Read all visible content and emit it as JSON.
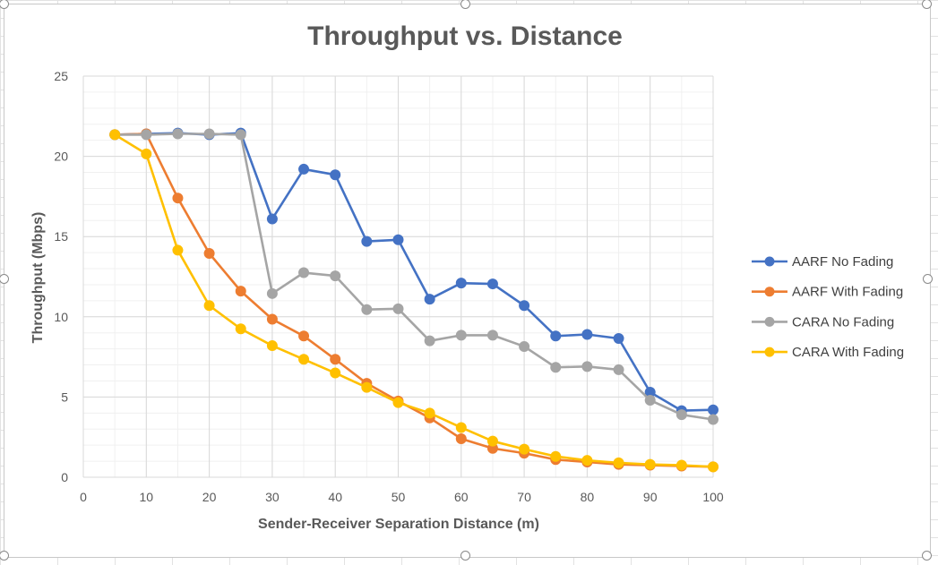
{
  "chart_data": {
    "type": "line",
    "title": "Throughput vs. Distance",
    "xlabel": "Sender-Receiver Separation Distance (m)",
    "ylabel": "Throughput  (Mbps)",
    "xlim": [
      0,
      100
    ],
    "ylim": [
      0,
      25
    ],
    "x_ticks": [
      0,
      10,
      20,
      30,
      40,
      50,
      60,
      70,
      80,
      90,
      100
    ],
    "y_ticks": [
      0,
      5,
      10,
      15,
      20,
      25
    ],
    "grid": true,
    "legend_position": "right",
    "x": [
      5,
      10,
      15,
      20,
      25,
      30,
      35,
      40,
      45,
      50,
      55,
      60,
      65,
      70,
      75,
      80,
      85,
      90,
      95,
      100
    ],
    "series": [
      {
        "name": "AARF No Fading",
        "color": "#4472C4",
        "values": [
          21.35,
          21.4,
          21.45,
          21.35,
          21.45,
          16.1,
          19.2,
          18.85,
          14.7,
          14.8,
          11.1,
          12.1,
          12.05,
          10.7,
          8.8,
          8.9,
          8.65,
          5.3,
          4.15,
          4.2
        ]
      },
      {
        "name": "AARF With Fading",
        "color": "#ED7D31",
        "values": [
          21.35,
          21.4,
          17.4,
          13.95,
          11.6,
          9.85,
          8.8,
          7.35,
          5.85,
          4.75,
          3.7,
          2.4,
          1.8,
          1.5,
          1.1,
          0.95,
          0.8,
          0.75,
          0.7,
          0.65
        ]
      },
      {
        "name": "CARA No Fading",
        "color": "#A5A5A5",
        "values": [
          21.35,
          21.35,
          21.4,
          21.4,
          21.35,
          11.45,
          12.75,
          12.55,
          10.45,
          10.5,
          8.5,
          8.85,
          8.85,
          8.15,
          6.85,
          6.9,
          6.7,
          4.8,
          3.9,
          3.6
        ]
      },
      {
        "name": "CARA With Fading",
        "color": "#FFC000",
        "values": [
          21.35,
          20.15,
          14.15,
          10.7,
          9.25,
          8.2,
          7.35,
          6.5,
          5.6,
          4.65,
          4.0,
          3.1,
          2.25,
          1.75,
          1.3,
          1.05,
          0.9,
          0.8,
          0.75,
          0.65
        ]
      }
    ]
  }
}
